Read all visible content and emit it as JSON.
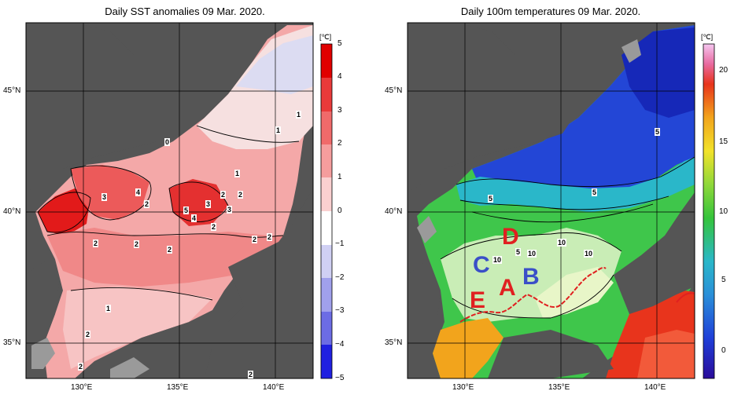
{
  "left_panel": {
    "title": "Daily SST anomalies 09 Mar. 2020.",
    "unit": "[℃]",
    "colorbar_ticks": [
      "5",
      "4",
      "3",
      "2",
      "1",
      "0",
      "−1",
      "−2",
      "−3",
      "−4",
      "−5"
    ],
    "lat_ticks": [
      "45°N",
      "40°N",
      "35°N"
    ],
    "lon_ticks": [
      "130°E",
      "135°E",
      "140°E"
    ],
    "contour_labels": [
      "0",
      "1",
      "1",
      "1",
      "3",
      "4",
      "2",
      "2",
      "5",
      "4",
      "3",
      "2",
      "3",
      "2",
      "2",
      "2",
      "2",
      "2",
      "1",
      "2",
      "2",
      "2",
      "2"
    ]
  },
  "right_panel": {
    "title": "Daily 100m temperatures 09 Mar. 2020.",
    "unit": "[℃]",
    "colorbar_ticks": [
      "20",
      "15",
      "10",
      "5",
      "0"
    ],
    "lat_ticks": [
      "45°N",
      "40°N",
      "35°N"
    ],
    "lon_ticks": [
      "130°E",
      "135°E",
      "140°E"
    ],
    "contour_labels": [
      "5",
      "5",
      "5",
      "5",
      "10",
      "10",
      "10",
      "10"
    ],
    "region_labels": [
      "D",
      "C",
      "A",
      "B",
      "E"
    ]
  },
  "colors": {
    "land": "#555555",
    "anomaly_warm_strong": "#e21a1a",
    "anomaly_warm_mid": "#f07c7c",
    "anomaly_warm_light": "#f8c6c6",
    "anomaly_cold": "#b9b9e8",
    "temp_cold": "#1f3fd8",
    "temp_cyan": "#2ab7c9",
    "temp_green": "#35c43b",
    "temp_light": "#d7f0c0",
    "temp_warm": "#f0a020",
    "temp_hot": "#e8341c",
    "label_red": "#e02020",
    "label_blue": "#3a4fc8"
  }
}
